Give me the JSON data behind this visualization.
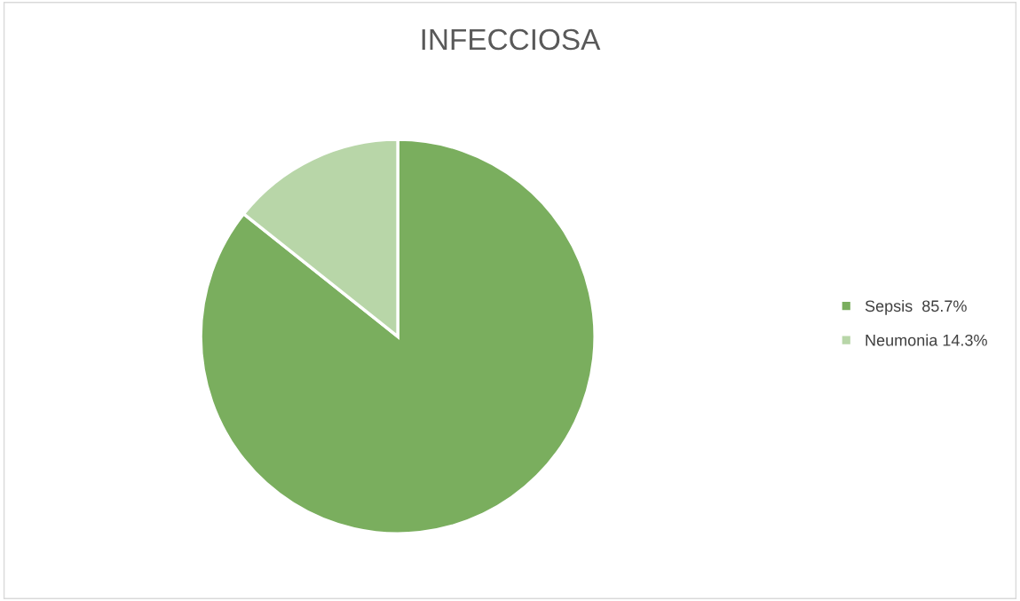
{
  "chart_data": {
    "type": "pie",
    "title": "INFECCIOSA",
    "categories": [
      "Sepsis  85.7%",
      "Neumonia 14.3%"
    ],
    "values": [
      85.7,
      14.3
    ],
    "colors": [
      "#7aae5e",
      "#b8d6a8"
    ],
    "legend": "right"
  }
}
